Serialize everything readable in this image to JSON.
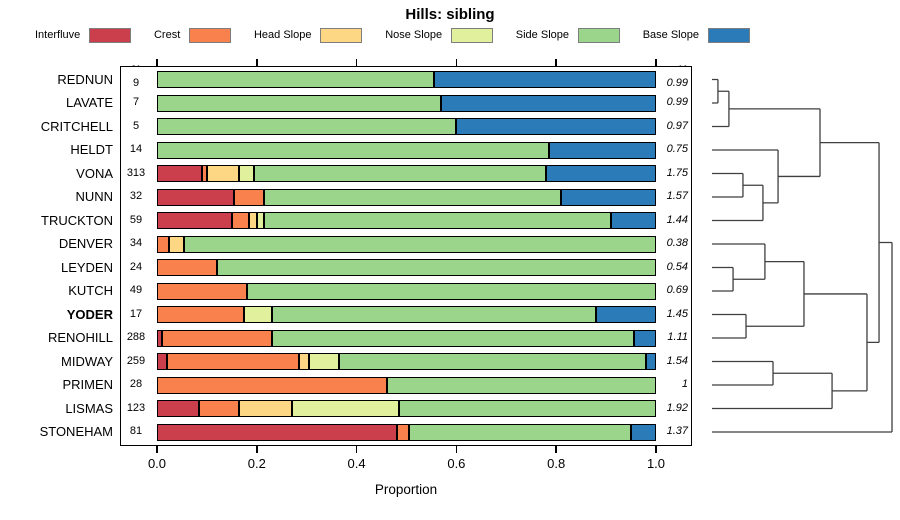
{
  "chart_data": {
    "type": "bar",
    "stacked": true,
    "orientation": "horizontal",
    "title": "Hills: sibling",
    "xlabel": "Proportion",
    "xlim": [
      0,
      1
    ],
    "xtick_labels": [
      "0.0",
      "0.2",
      "0.4",
      "0.6",
      "0.8",
      "1.0"
    ],
    "grid": false,
    "legend_position": "top",
    "n_column_header": "N",
    "h_column_header": "H",
    "highlighted_category": "YODER",
    "categories": [
      "REDNUN",
      "LAVATE",
      "CRITCHELL",
      "HELDT",
      "VONA",
      "NUNN",
      "TRUCKTON",
      "DENVER",
      "LEYDEN",
      "KUTCH",
      "YODER",
      "RENOHILL",
      "MIDWAY",
      "PRIMEN",
      "LISMAS",
      "STONEHAM"
    ],
    "n_values": [
      9,
      7,
      5,
      14,
      313,
      32,
      59,
      34,
      24,
      49,
      17,
      288,
      259,
      28,
      123,
      81
    ],
    "h_values": [
      "0.99",
      "0.99",
      "0.97",
      "0.75",
      "1.75",
      "1.57",
      "1.44",
      "0.38",
      "0.54",
      "0.69",
      "1.45",
      "1.11",
      "1.54",
      "1",
      "1.92",
      "1.37"
    ],
    "series": [
      {
        "name": "Interfluve",
        "color": "#cb3e4b",
        "values": [
          0,
          0,
          0,
          0,
          0.09,
          0.155,
          0.15,
          0,
          0,
          0,
          0,
          0.01,
          0.02,
          0,
          0.085,
          0.48
        ]
      },
      {
        "name": "Crest",
        "color": "#f8814e",
        "values": [
          0,
          0,
          0,
          0,
          0.01,
          0.06,
          0.035,
          0.025,
          0.12,
          0.18,
          0.175,
          0.22,
          0.265,
          0.46,
          0.08,
          0.025
        ]
      },
      {
        "name": "Head Slope",
        "color": "#fdd783",
        "values": [
          0,
          0,
          0,
          0,
          0.065,
          0,
          0.015,
          0.03,
          0,
          0,
          0,
          0,
          0.02,
          0,
          0.105,
          0
        ]
      },
      {
        "name": "Nose Slope",
        "color": "#e1f09d",
        "values": [
          0,
          0,
          0,
          0,
          0.03,
          0,
          0.015,
          0,
          0,
          0,
          0.055,
          0,
          0.06,
          0,
          0.215,
          0
        ]
      },
      {
        "name": "Side Slope",
        "color": "#9bd48b",
        "values": [
          0.555,
          0.57,
          0.6,
          0.785,
          0.585,
          0.595,
          0.695,
          0.945,
          0.88,
          0.82,
          0.65,
          0.725,
          0.615,
          0.54,
          0.515,
          0.445
        ]
      },
      {
        "name": "Base Slope",
        "color": "#2b7bb9",
        "values": [
          0.445,
          0.43,
          0.4,
          0.215,
          0.22,
          0.19,
          0.09,
          0,
          0,
          0,
          0.12,
          0.045,
          0.02,
          0,
          0,
          0.05
        ]
      }
    ],
    "dendrogram": {
      "height": 1.0,
      "children": [
        {
          "height": 0.928,
          "children": [
            {
              "height": 0.6,
              "children": [
                {
                  "height": 0.094,
                  "children": [
                    {
                      "height": 0.033,
                      "children": [
                        {
                          "leaf": "REDNUN"
                        },
                        {
                          "leaf": "LAVATE"
                        }
                      ]
                    },
                    {
                      "leaf": "CRITCHELL"
                    }
                  ]
                },
                {
                  "height": 0.367,
                  "children": [
                    {
                      "leaf": "HELDT"
                    },
                    {
                      "height": 0.283,
                      "children": [
                        {
                          "height": 0.172,
                          "children": [
                            {
                              "leaf": "VONA"
                            },
                            {
                              "leaf": "NUNN"
                            }
                          ]
                        },
                        {
                          "leaf": "TRUCKTON"
                        }
                      ]
                    }
                  ]
                }
              ]
            },
            {
              "height": 0.861,
              "children": [
                {
                  "height": 0.511,
                  "children": [
                    {
                      "height": 0.294,
                      "children": [
                        {
                          "leaf": "DENVER"
                        },
                        {
                          "height": 0.117,
                          "children": [
                            {
                              "leaf": "LEYDEN"
                            },
                            {
                              "leaf": "KUTCH"
                            }
                          ]
                        }
                      ]
                    },
                    {
                      "height": 0.189,
                      "children": [
                        {
                          "leaf": "YODER"
                        },
                        {
                          "leaf": "RENOHILL"
                        }
                      ]
                    }
                  ]
                },
                {
                  "height": 0.667,
                  "children": [
                    {
                      "height": 0.339,
                      "children": [
                        {
                          "leaf": "MIDWAY"
                        },
                        {
                          "leaf": "PRIMEN"
                        }
                      ]
                    },
                    {
                      "leaf": "LISMAS"
                    }
                  ]
                }
              ]
            }
          ]
        },
        {
          "leaf": "STONEHAM"
        }
      ]
    }
  }
}
